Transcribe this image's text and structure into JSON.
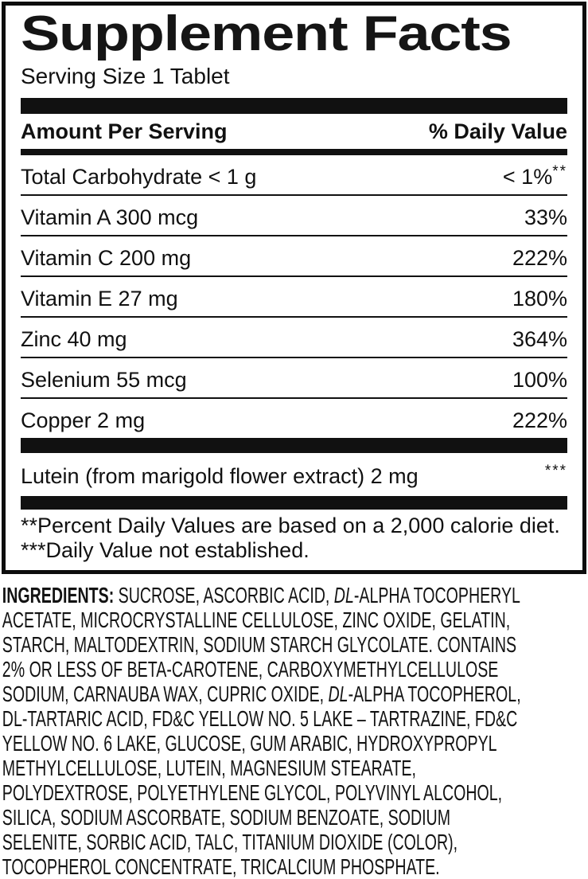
{
  "colors": {
    "text": "#111111",
    "background": "#ffffff",
    "rule": "#111111"
  },
  "label": {
    "title": "Supplement Facts",
    "serving_size": "Serving Size 1 Tablet",
    "header": {
      "amount": "Amount Per Serving",
      "daily_value": "% Daily Value"
    },
    "rows": [
      {
        "name": "Total Carbohydrate < 1 g",
        "value": "< 1%",
        "sup": "**"
      },
      {
        "name": "Vitamin A 300 mcg",
        "value": "33%",
        "sup": ""
      },
      {
        "name": "Vitamin C 200 mg",
        "value": "222%",
        "sup": ""
      },
      {
        "name": "Vitamin E 27 mg",
        "value": "180%",
        "sup": ""
      },
      {
        "name": "Zinc 40 mg",
        "value": "364%",
        "sup": ""
      },
      {
        "name": "Selenium 55 mcg",
        "value": "100%",
        "sup": ""
      },
      {
        "name": "Copper 2 mg",
        "value": "222%",
        "sup": ""
      }
    ],
    "extra_row": {
      "name": "Lutein (from marigold flower extract) 2 mg",
      "value": "",
      "sup": "***"
    },
    "footnotes": [
      "**Percent Daily Values are based on a 2,000 calorie diet.",
      "***Daily Value not established."
    ]
  },
  "ingredients": {
    "line1": {
      "bold": "INGREDIENTS:",
      "pre": " SUCROSE, ASCORBIC ACID, ",
      "italic": "DL",
      "post": "-ALPHA TOCOPHERYL"
    },
    "line2": "ACETATE, MICROCRYSTALLINE CELLULOSE, ZINC OXIDE, GELATIN,",
    "line3": "STARCH, MALTODEXTRIN, SODIUM STARCH GLYCOLATE. CONTAINS",
    "line4": "2% OR LESS OF BETA-CAROTENE, CARBOXYMETHYLCELLULOSE",
    "line5": {
      "pre": "SODIUM, CARNAUBA WAX, CUPRIC OXIDE, ",
      "italic": "DL",
      "post": "-ALPHA TOCOPHEROL,"
    },
    "line6": "DL-TARTARIC ACID, FD&C YELLOW NO. 5 LAKE – TARTRAZINE, FD&C",
    "line7": "YELLOW NO. 6 LAKE, GLUCOSE, GUM ARABIC, HYDROXYPROPYL",
    "line8": "METHYLCELLULOSE, LUTEIN, MAGNESIUM STEARATE,",
    "line9": "POLYDEXTROSE, POLYETHYLENE GLYCOL, POLYVINYL ALCOHOL,",
    "line10": "SILICA, SODIUM ASCORBATE, SODIUM BENZOATE, SODIUM",
    "line11": "SELENITE, SORBIC ACID, TALC, TITANIUM DIOXIDE (COLOR),",
    "line12": "TOCOPHEROL CONCENTRATE, TRICALCIUM PHOSPHATE."
  }
}
